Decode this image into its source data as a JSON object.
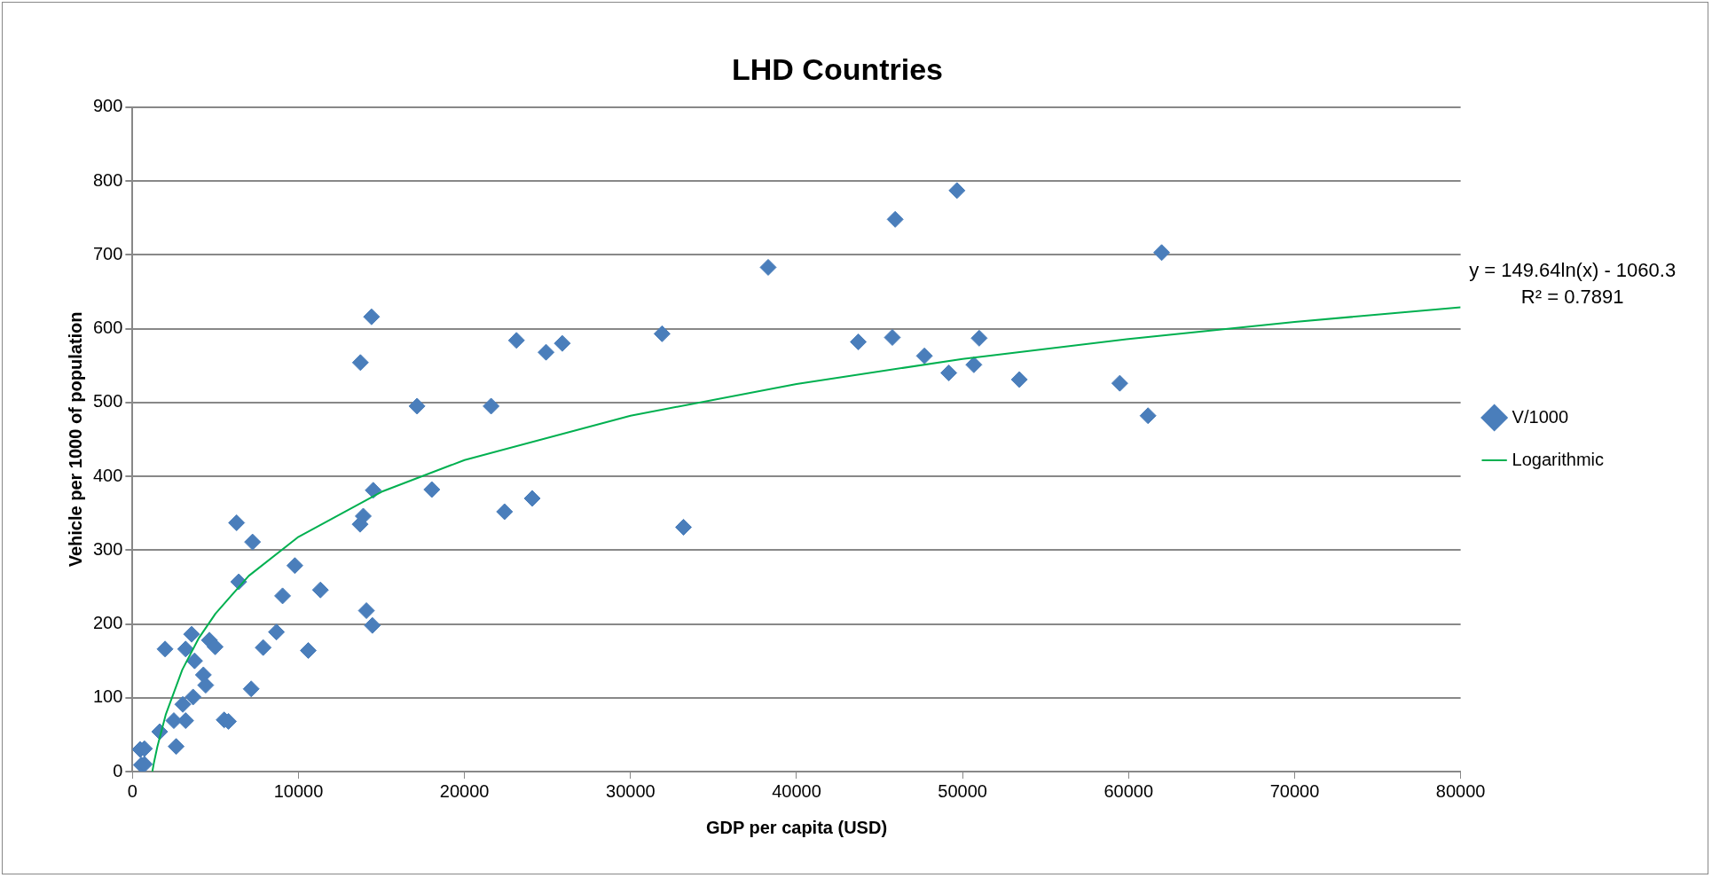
{
  "chart_data": {
    "type": "scatter",
    "title": "LHD Countries",
    "xlabel": "GDP per capita (USD)",
    "ylabel": "Vehicle per 1000 of population",
    "xlim": [
      0,
      80000
    ],
    "xticks": [
      0,
      10000,
      20000,
      30000,
      40000,
      50000,
      60000,
      70000,
      80000
    ],
    "ylim": [
      0,
      900
    ],
    "yticks": [
      0,
      100,
      200,
      300,
      400,
      500,
      600,
      700,
      800,
      900
    ],
    "grid": "y",
    "legend": "right",
    "marker": "diamond",
    "annotations": [
      "y = 149.64ln(x) - 1060.3",
      "R² = 0.7891"
    ],
    "series": [
      {
        "name": "V/1000",
        "color": "#4a7ebb",
        "x": [
          460,
          720,
          530,
          720,
          1640,
          1960,
          2490,
          2630,
          3030,
          3200,
          3200,
          3560,
          3650,
          3740,
          4270,
          4410,
          4630,
          4980,
          5520,
          5780,
          6270,
          6400,
          7150,
          7230,
          7870,
          8670,
          9040,
          9780,
          10590,
          11320,
          13730,
          13710,
          13900,
          14090,
          14400,
          14450,
          14500,
          17140,
          18030,
          21600,
          22410,
          23130,
          24080,
          24910,
          25890,
          31900,
          33190,
          38290,
          43720,
          45940,
          45770,
          47700,
          49660,
          49170,
          50680,
          51000,
          53420,
          59470,
          61170,
          61990
        ],
        "values": [
          30,
          31,
          9,
          10,
          54,
          166,
          69,
          34,
          91,
          166,
          69,
          186,
          101,
          150,
          131,
          117,
          178,
          169,
          70,
          68,
          337,
          257,
          112,
          311,
          168,
          189,
          238,
          279,
          164,
          246,
          554,
          335,
          346,
          218,
          616,
          198,
          381,
          495,
          382,
          495,
          352,
          584,
          370,
          568,
          580,
          593,
          331,
          683,
          582,
          748,
          588,
          563,
          787,
          540,
          551,
          587,
          531,
          526,
          482,
          703
        ]
      },
      {
        "name": "Logarithmic",
        "type": "line",
        "color": "#00b050",
        "marker": "none",
        "x": [
          1195,
          1300,
          1500,
          2000,
          3000,
          4000,
          5000,
          7000,
          10000,
          15000,
          20000,
          30000,
          40000,
          50000,
          60000,
          70000,
          80000
        ],
        "values": [
          0,
          13,
          34,
          77,
          138,
          181,
          214,
          265,
          318,
          379,
          422,
          482,
          525,
          559,
          586,
          609,
          629
        ]
      }
    ]
  }
}
